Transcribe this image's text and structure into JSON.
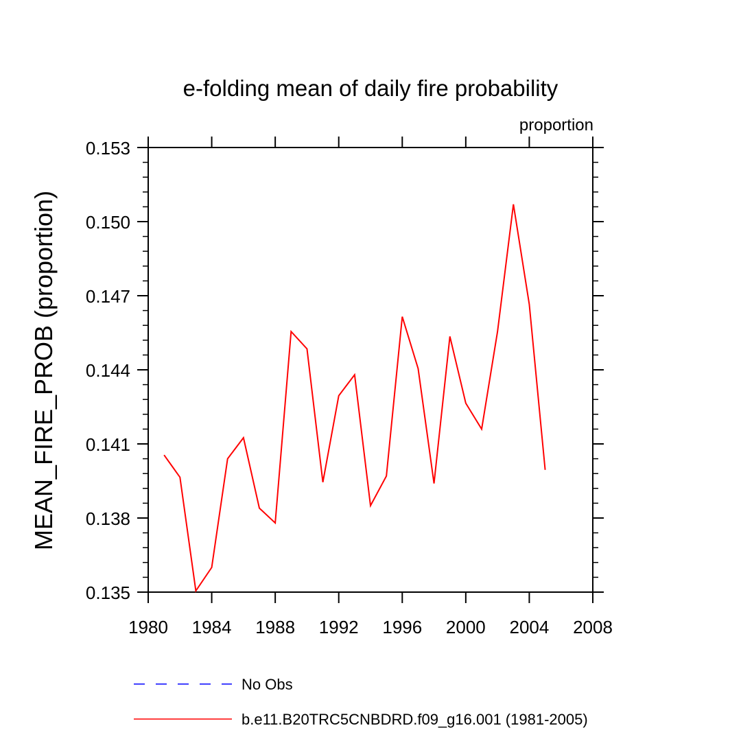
{
  "chart_data": {
    "type": "line",
    "title": "e-folding mean of daily fire probability",
    "units_label": "proportion",
    "ylabel": "MEAN_FIRE_PROB  (proportion)",
    "xlabel": "",
    "xlim": [
      1980,
      2008
    ],
    "ylim": [
      0.135,
      0.153
    ],
    "x_ticks": [
      1980,
      1984,
      1988,
      1992,
      1996,
      2000,
      2004,
      2008
    ],
    "x_tick_labels": [
      "1980",
      "1984",
      "1988",
      "1992",
      "1996",
      "2000",
      "2004",
      "2008"
    ],
    "y_ticks": [
      0.135,
      0.138,
      0.141,
      0.144,
      0.147,
      0.15,
      0.153
    ],
    "y_tick_labels": [
      "0.135",
      "0.138",
      "0.141",
      "0.144",
      "0.147",
      "0.150",
      "0.153"
    ],
    "grid": false,
    "legend_position": "bottom",
    "series": [
      {
        "name": "No Obs",
        "color": "#0000ff",
        "dash": "dashed",
        "x": [],
        "values": []
      },
      {
        "name": "b.e11.B20TRC5CNBDRD.f09_g16.001 (1981-2005)",
        "color": "#ff0000",
        "dash": "solid",
        "x": [
          1981,
          1982,
          1983,
          1984,
          1985,
          1986,
          1987,
          1988,
          1989,
          1990,
          1991,
          1992,
          1993,
          1994,
          1995,
          1996,
          1997,
          1998,
          1999,
          2000,
          2001,
          2002,
          2003,
          2004,
          2005
        ],
        "values": [
          0.14055,
          0.13965,
          0.13505,
          0.136,
          0.1404,
          0.14125,
          0.1384,
          0.1378,
          0.14555,
          0.14485,
          0.13945,
          0.14295,
          0.1438,
          0.1385,
          0.1397,
          0.14615,
          0.14405,
          0.1394,
          0.14535,
          0.14265,
          0.1416,
          0.14555,
          0.1507,
          0.14665,
          0.13995
        ]
      }
    ]
  }
}
